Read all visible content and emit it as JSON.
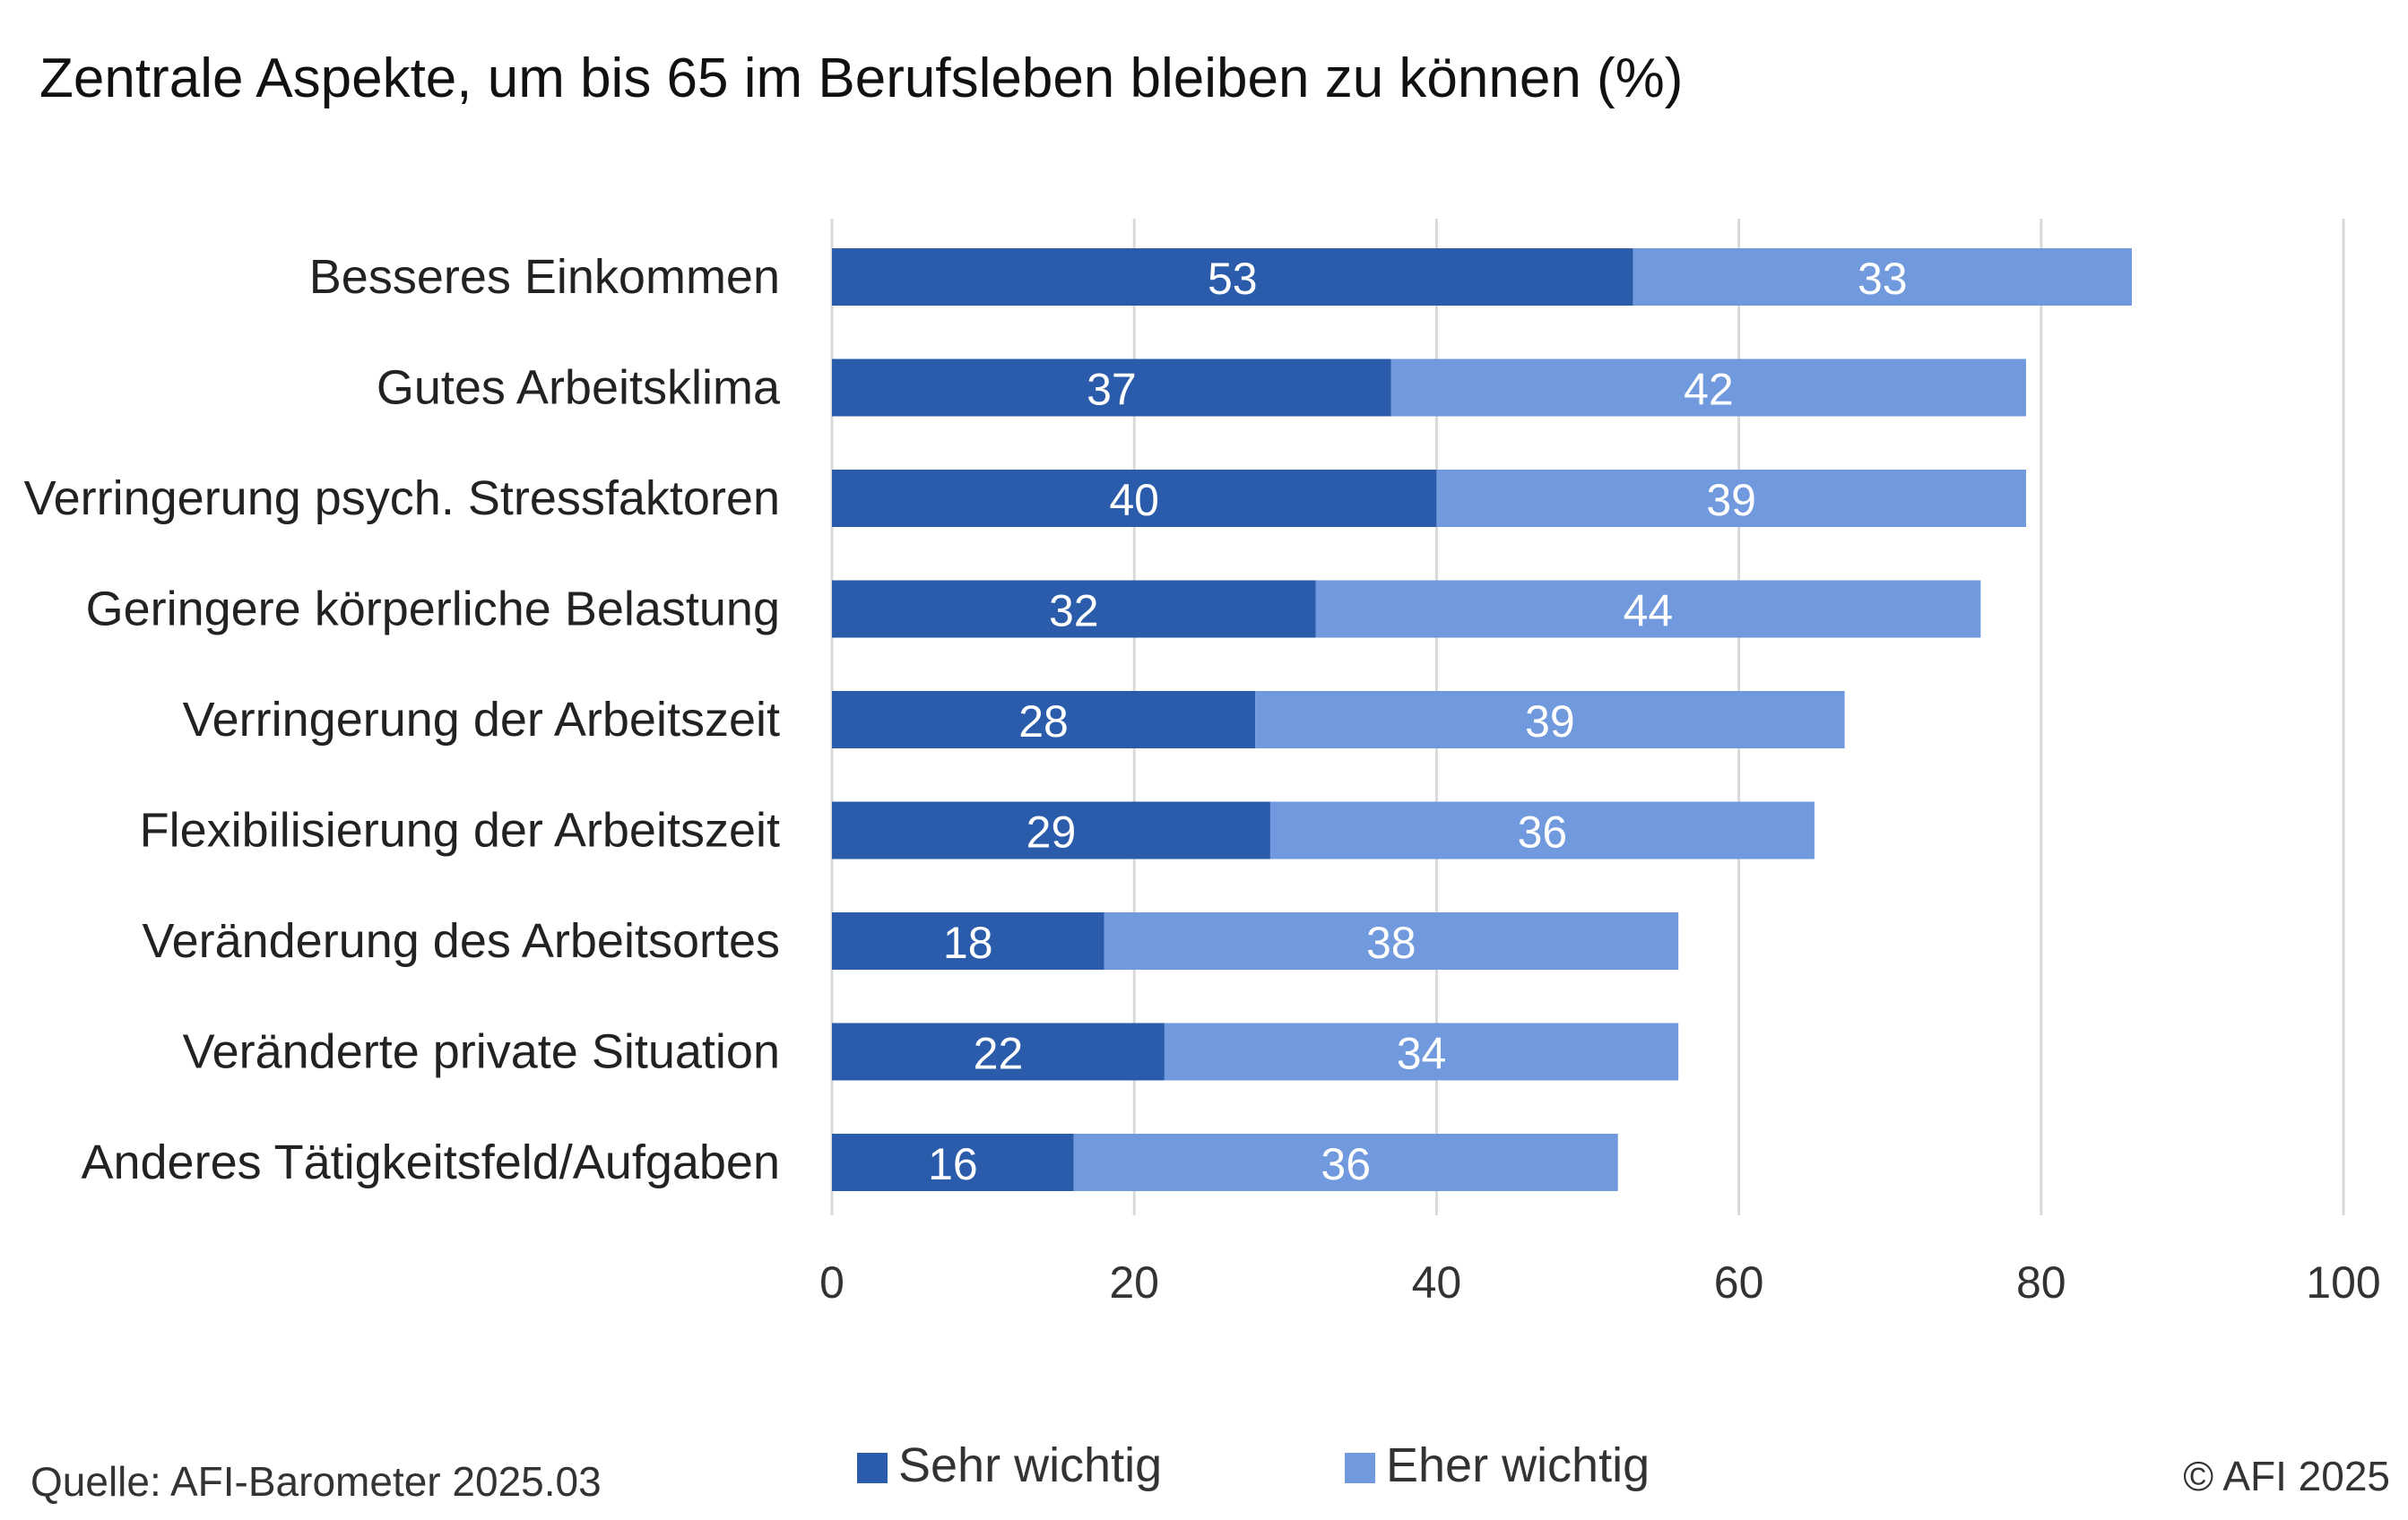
{
  "chart_data": {
    "type": "bar",
    "orientation": "horizontal",
    "stacked": true,
    "title": "Zentrale Aspekte, um bis 65 im Berufsleben bleiben zu können (%)",
    "categories": [
      "Besseres Einkommen",
      "Gutes Arbeitsklima",
      "Verringerung psych. Stressfaktoren",
      "Geringere körperliche Belastung",
      "Verringerung der Arbeitszeit",
      "Flexibilisierung der Arbeitszeit",
      "Veränderung des Arbeitsortes",
      "Veränderte private Situation",
      "Anderes Tätigkeitsfeld/Aufgaben"
    ],
    "series": [
      {
        "name": "Sehr wichtig",
        "color": "#2b5cab",
        "values": [
          53,
          37,
          40,
          32,
          28,
          29,
          18,
          22,
          16
        ]
      },
      {
        "name": "Eher wichtig",
        "color": "#7199dd",
        "values": [
          33,
          42,
          39,
          44,
          39,
          36,
          38,
          34,
          36
        ]
      }
    ],
    "xlim": [
      0,
      100
    ],
    "xticks": [
      0,
      20,
      40,
      60,
      80,
      100
    ],
    "grid": true,
    "legend_position": "bottom"
  },
  "source": "Quelle: AFI-Barometer 2025.03",
  "copyright": "© AFI 2025"
}
